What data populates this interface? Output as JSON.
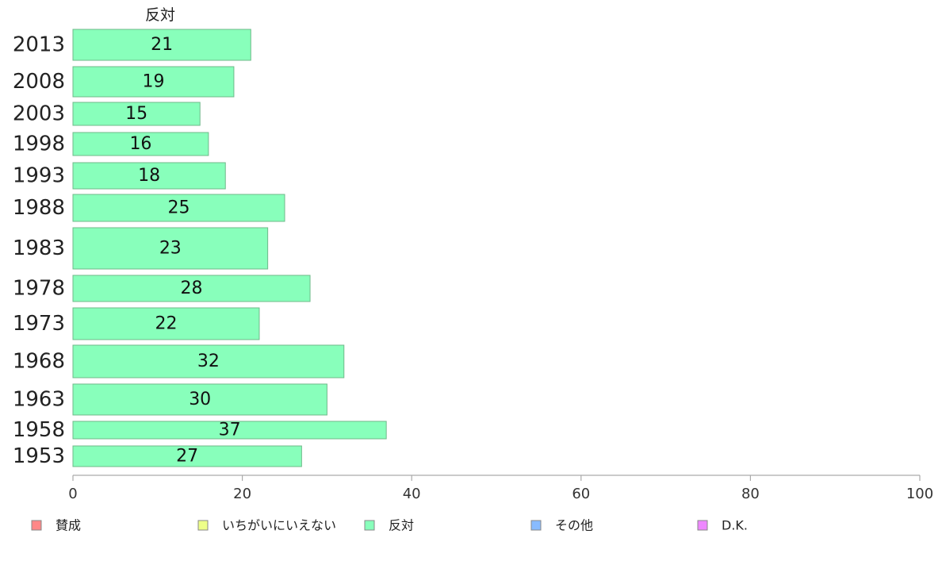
{
  "chart_data": {
    "type": "bar",
    "orientation": "horizontal",
    "column_title": "反対",
    "categories": [
      "2013",
      "2008",
      "2003",
      "1998",
      "1993",
      "1988",
      "1983",
      "1978",
      "1973",
      "1968",
      "1963",
      "1958",
      "1953"
    ],
    "series": [
      {
        "name": "反対",
        "color": "#88ffbb",
        "values": [
          21,
          19,
          15,
          16,
          18,
          25,
          23,
          28,
          22,
          32,
          30,
          37,
          27
        ]
      }
    ],
    "xlim": [
      0,
      100
    ],
    "xticks": [
      0,
      20,
      40,
      60,
      80,
      100
    ],
    "legend": {
      "placement": "bottom",
      "items": [
        {
          "label": "賛成",
          "color": "#ff8888"
        },
        {
          "label": "いちがいにいえない",
          "color": "#eeff88"
        },
        {
          "label": "反対",
          "color": "#88ffbb"
        },
        {
          "label": "その他",
          "color": "#88bbff"
        },
        {
          "label": "D.K.",
          "color": "#ee88ff"
        }
      ]
    },
    "grid": false
  }
}
